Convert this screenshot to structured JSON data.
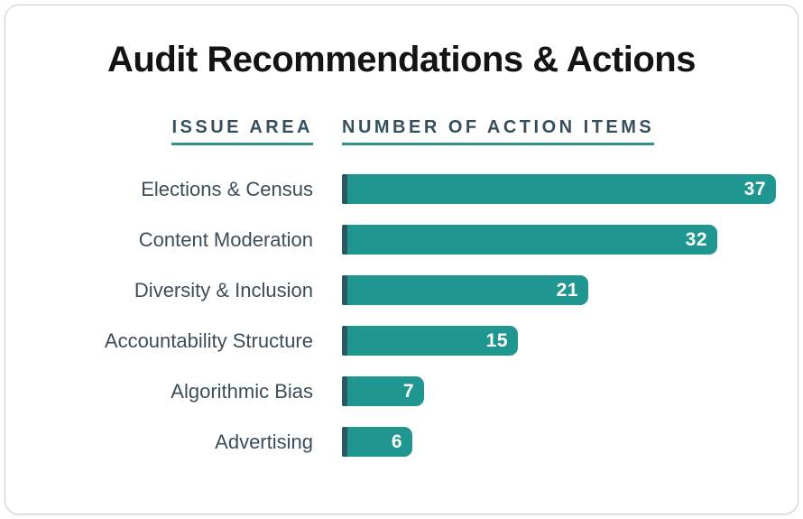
{
  "card": {
    "title": "Audit Recommendations & Actions"
  },
  "columns": {
    "issue_area": "ISSUE AREA",
    "action_items": "NUMBER OF ACTION ITEMS"
  },
  "chart_data": {
    "type": "bar",
    "orientation": "horizontal",
    "title": "Audit Recommendations & Actions",
    "ylabel": "ISSUE AREA",
    "xlabel": "NUMBER OF ACTION ITEMS",
    "categories": [
      "Elections & Census",
      "Content Moderation",
      "Diversity & Inclusion",
      "Accountability Structure",
      "Algorithmic Bias",
      "Advertising"
    ],
    "values": [
      37,
      32,
      21,
      15,
      7,
      6
    ],
    "xlim": [
      0,
      37
    ],
    "grid": false,
    "legend": false,
    "value_labels": "inside-end"
  },
  "colors": {
    "bar_color": "#1f9790",
    "bar_edge_color": "#2b5862",
    "underline_color": "#2e8f8c",
    "header_text": "#35505c",
    "label_text": "#3e4d5a",
    "title_text": "#141414",
    "card_border": "#ccd1d6",
    "card_bg": "#ffffff"
  }
}
